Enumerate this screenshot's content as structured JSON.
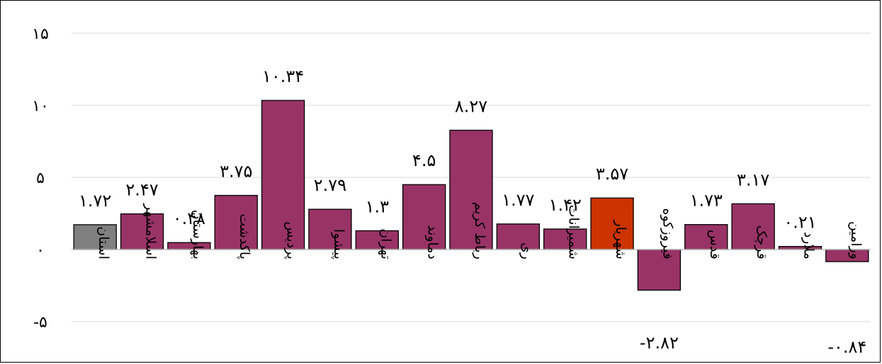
{
  "chart_data": {
    "type": "bar",
    "title": "",
    "xlabel": "",
    "ylabel": "",
    "ylim": [
      -5,
      15
    ],
    "y_ticks": [
      -5,
      0,
      5,
      10,
      15
    ],
    "y_tick_labels": [
      "-۵",
      "۰",
      "۵",
      "۱۰",
      "۱۵"
    ],
    "grid": true,
    "legend": "none",
    "categories": [
      "استان",
      "اسلامشهر",
      "بهارستان",
      "پاکدشت",
      "پردیس",
      "پیشوا",
      "تهران",
      "دماوند",
      "رباط کریم",
      "ری",
      "شمیرانات",
      "شهریار",
      "فیروزکوه",
      "قدس",
      "قرچک",
      "ملارد",
      "ورامین"
    ],
    "values": [
      1.72,
      2.47,
      0.48,
      3.75,
      10.34,
      2.79,
      1.3,
      4.5,
      8.27,
      1.77,
      1.42,
      3.57,
      -2.82,
      1.73,
      3.17,
      0.21,
      -0.84
    ],
    "value_labels": [
      "۱.۷۲",
      "۲.۴۷",
      "۰.۴۸",
      "۳.۷۵",
      "۱۰.۳۴",
      "۲.۷۹",
      "۱.۳",
      "۴.۵",
      "۸.۲۷",
      "۱.۷۷",
      "۱.۴۲",
      "۳.۵۷",
      "-۲.۸۲",
      "۱.۷۳",
      "۳.۱۷",
      "۰.۲۱",
      "-۰.۸۴"
    ],
    "colors": {
      "default": "#993366",
      "استان": "#808080",
      "شهریار": "#cc3300"
    },
    "grid_color": "#d9d9d9",
    "axis_color": "#bfbfbf"
  }
}
